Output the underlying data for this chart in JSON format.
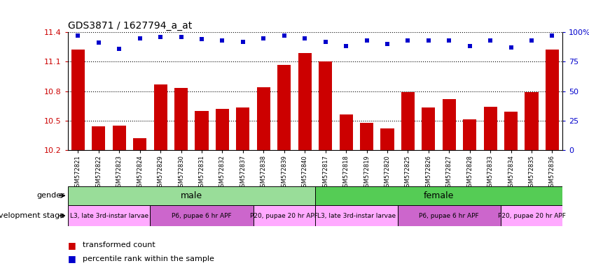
{
  "title": "GDS3871 / 1627794_a_at",
  "samples": [
    "GSM572821",
    "GSM572822",
    "GSM572823",
    "GSM572824",
    "GSM572829",
    "GSM572830",
    "GSM572831",
    "GSM572832",
    "GSM572837",
    "GSM572838",
    "GSM572839",
    "GSM572840",
    "GSM572817",
    "GSM572818",
    "GSM572819",
    "GSM572820",
    "GSM572825",
    "GSM572826",
    "GSM572827",
    "GSM572828",
    "GSM572833",
    "GSM572834",
    "GSM572835",
    "GSM572836"
  ],
  "bar_values": [
    11.22,
    10.44,
    10.45,
    10.32,
    10.87,
    10.83,
    10.6,
    10.62,
    10.63,
    10.84,
    11.07,
    11.19,
    11.1,
    10.56,
    10.48,
    10.42,
    10.79,
    10.63,
    10.72,
    10.51,
    10.64,
    10.59,
    10.79,
    11.22
  ],
  "dot_values": [
    97,
    91,
    86,
    95,
    96,
    96,
    94,
    93,
    92,
    95,
    97,
    95,
    92,
    88,
    93,
    90,
    93,
    93,
    93,
    88,
    93,
    87,
    93,
    97
  ],
  "ylim_left": [
    10.2,
    11.4
  ],
  "ylim_right": [
    0,
    100
  ],
  "yticks_left": [
    10.2,
    10.5,
    10.8,
    11.1,
    11.4
  ],
  "yticks_right": [
    0,
    25,
    50,
    75,
    100
  ],
  "ytick_labels_right": [
    "0",
    "25",
    "50",
    "75",
    "100%"
  ],
  "bar_color": "#cc0000",
  "dot_color": "#0000cc",
  "gender_groups": [
    {
      "label": "male",
      "start": 0,
      "end": 12,
      "color": "#99dd99"
    },
    {
      "label": "female",
      "start": 12,
      "end": 24,
      "color": "#55cc55"
    }
  ],
  "dev_stage_groups": [
    {
      "label": "L3, late 3rd-instar larvae",
      "start": 0,
      "end": 4,
      "color": "#ffaaff"
    },
    {
      "label": "P6, pupae 6 hr APF",
      "start": 4,
      "end": 9,
      "color": "#cc66cc"
    },
    {
      "label": "P20, pupae 20 hr APF",
      "start": 9,
      "end": 12,
      "color": "#ffaaff"
    },
    {
      "label": "L3, late 3rd-instar larvae",
      "start": 12,
      "end": 16,
      "color": "#ffaaff"
    },
    {
      "label": "P6, pupae 6 hr APF",
      "start": 16,
      "end": 21,
      "color": "#cc66cc"
    },
    {
      "label": "P20, pupae 20 hr APF",
      "start": 21,
      "end": 24,
      "color": "#ffaaff"
    }
  ],
  "legend_items": [
    {
      "label": "transformed count",
      "color": "#cc0000"
    },
    {
      "label": "percentile rank within the sample",
      "color": "#0000cc"
    }
  ],
  "background_color": "#ffffff"
}
